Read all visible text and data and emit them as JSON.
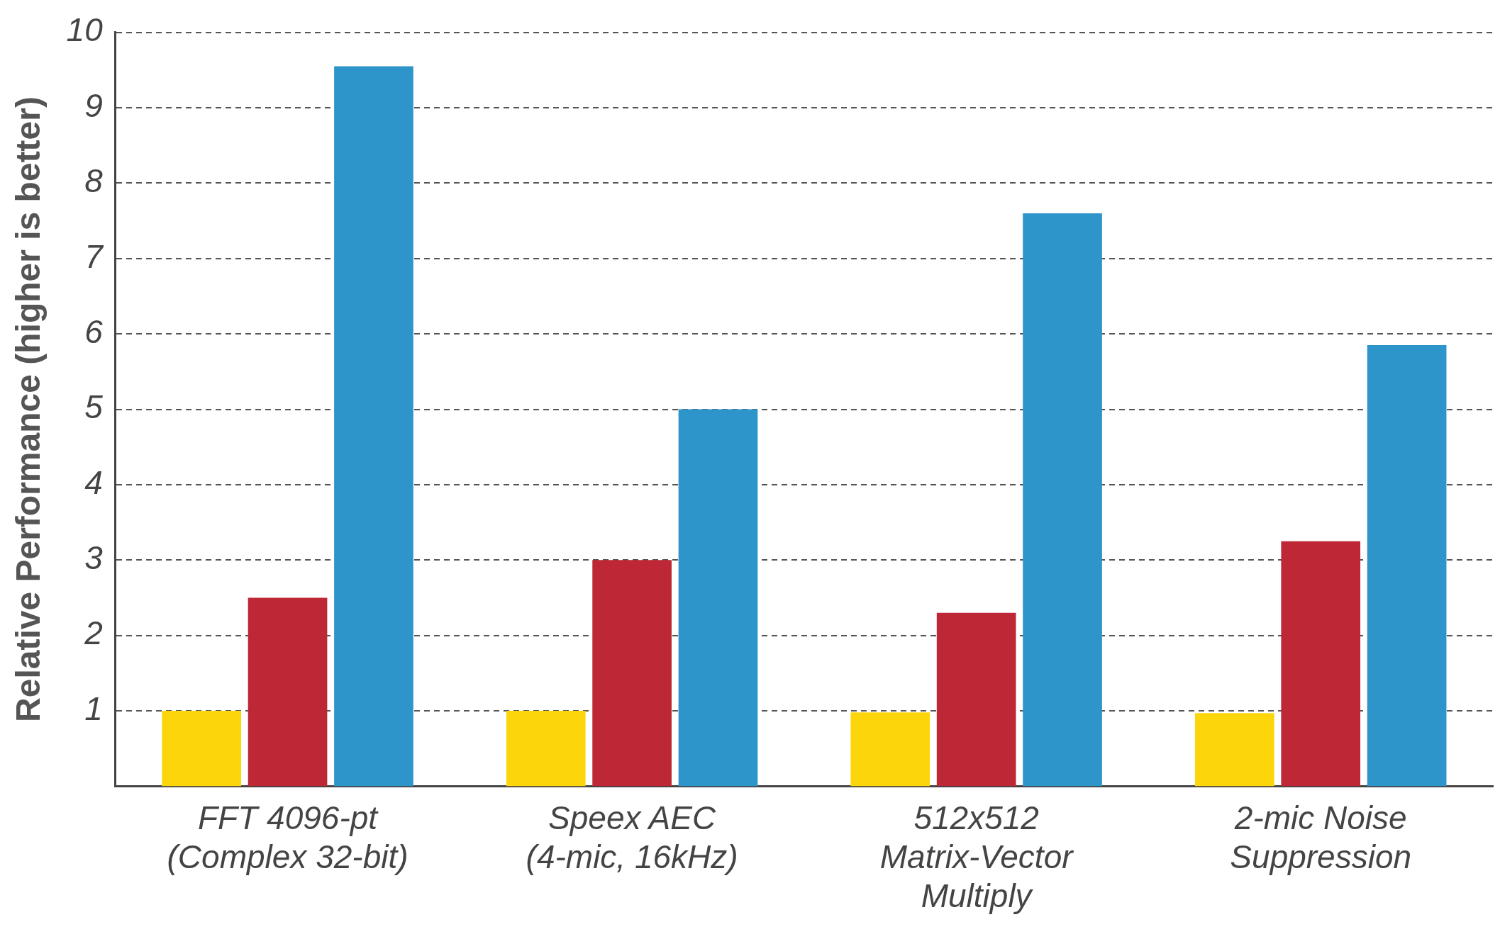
{
  "chart_data": {
    "type": "bar",
    "ylabel": "Relative Performance (higher is better)",
    "categories": [
      "FFT 4096-pt\n(Complex 32-bit)",
      "Speex AEC\n(4-mic, 16kHz)",
      "512x512\nMatrix-Vector\nMultiply",
      "2-mic Noise\nSuppression"
    ],
    "series": [
      {
        "color": "#fcd60b",
        "values": [
          1.0,
          1.0,
          0.98,
          0.97
        ]
      },
      {
        "color": "#be2736",
        "values": [
          2.5,
          3.0,
          2.3,
          3.25
        ]
      },
      {
        "color": "#2e95cb",
        "values": [
          9.55,
          5.0,
          7.6,
          5.85
        ]
      }
    ],
    "ylim": [
      0,
      10
    ],
    "yticks": [
      1,
      2,
      3,
      4,
      5,
      6,
      7,
      8,
      9,
      10
    ],
    "grid": "y",
    "legend": false
  }
}
